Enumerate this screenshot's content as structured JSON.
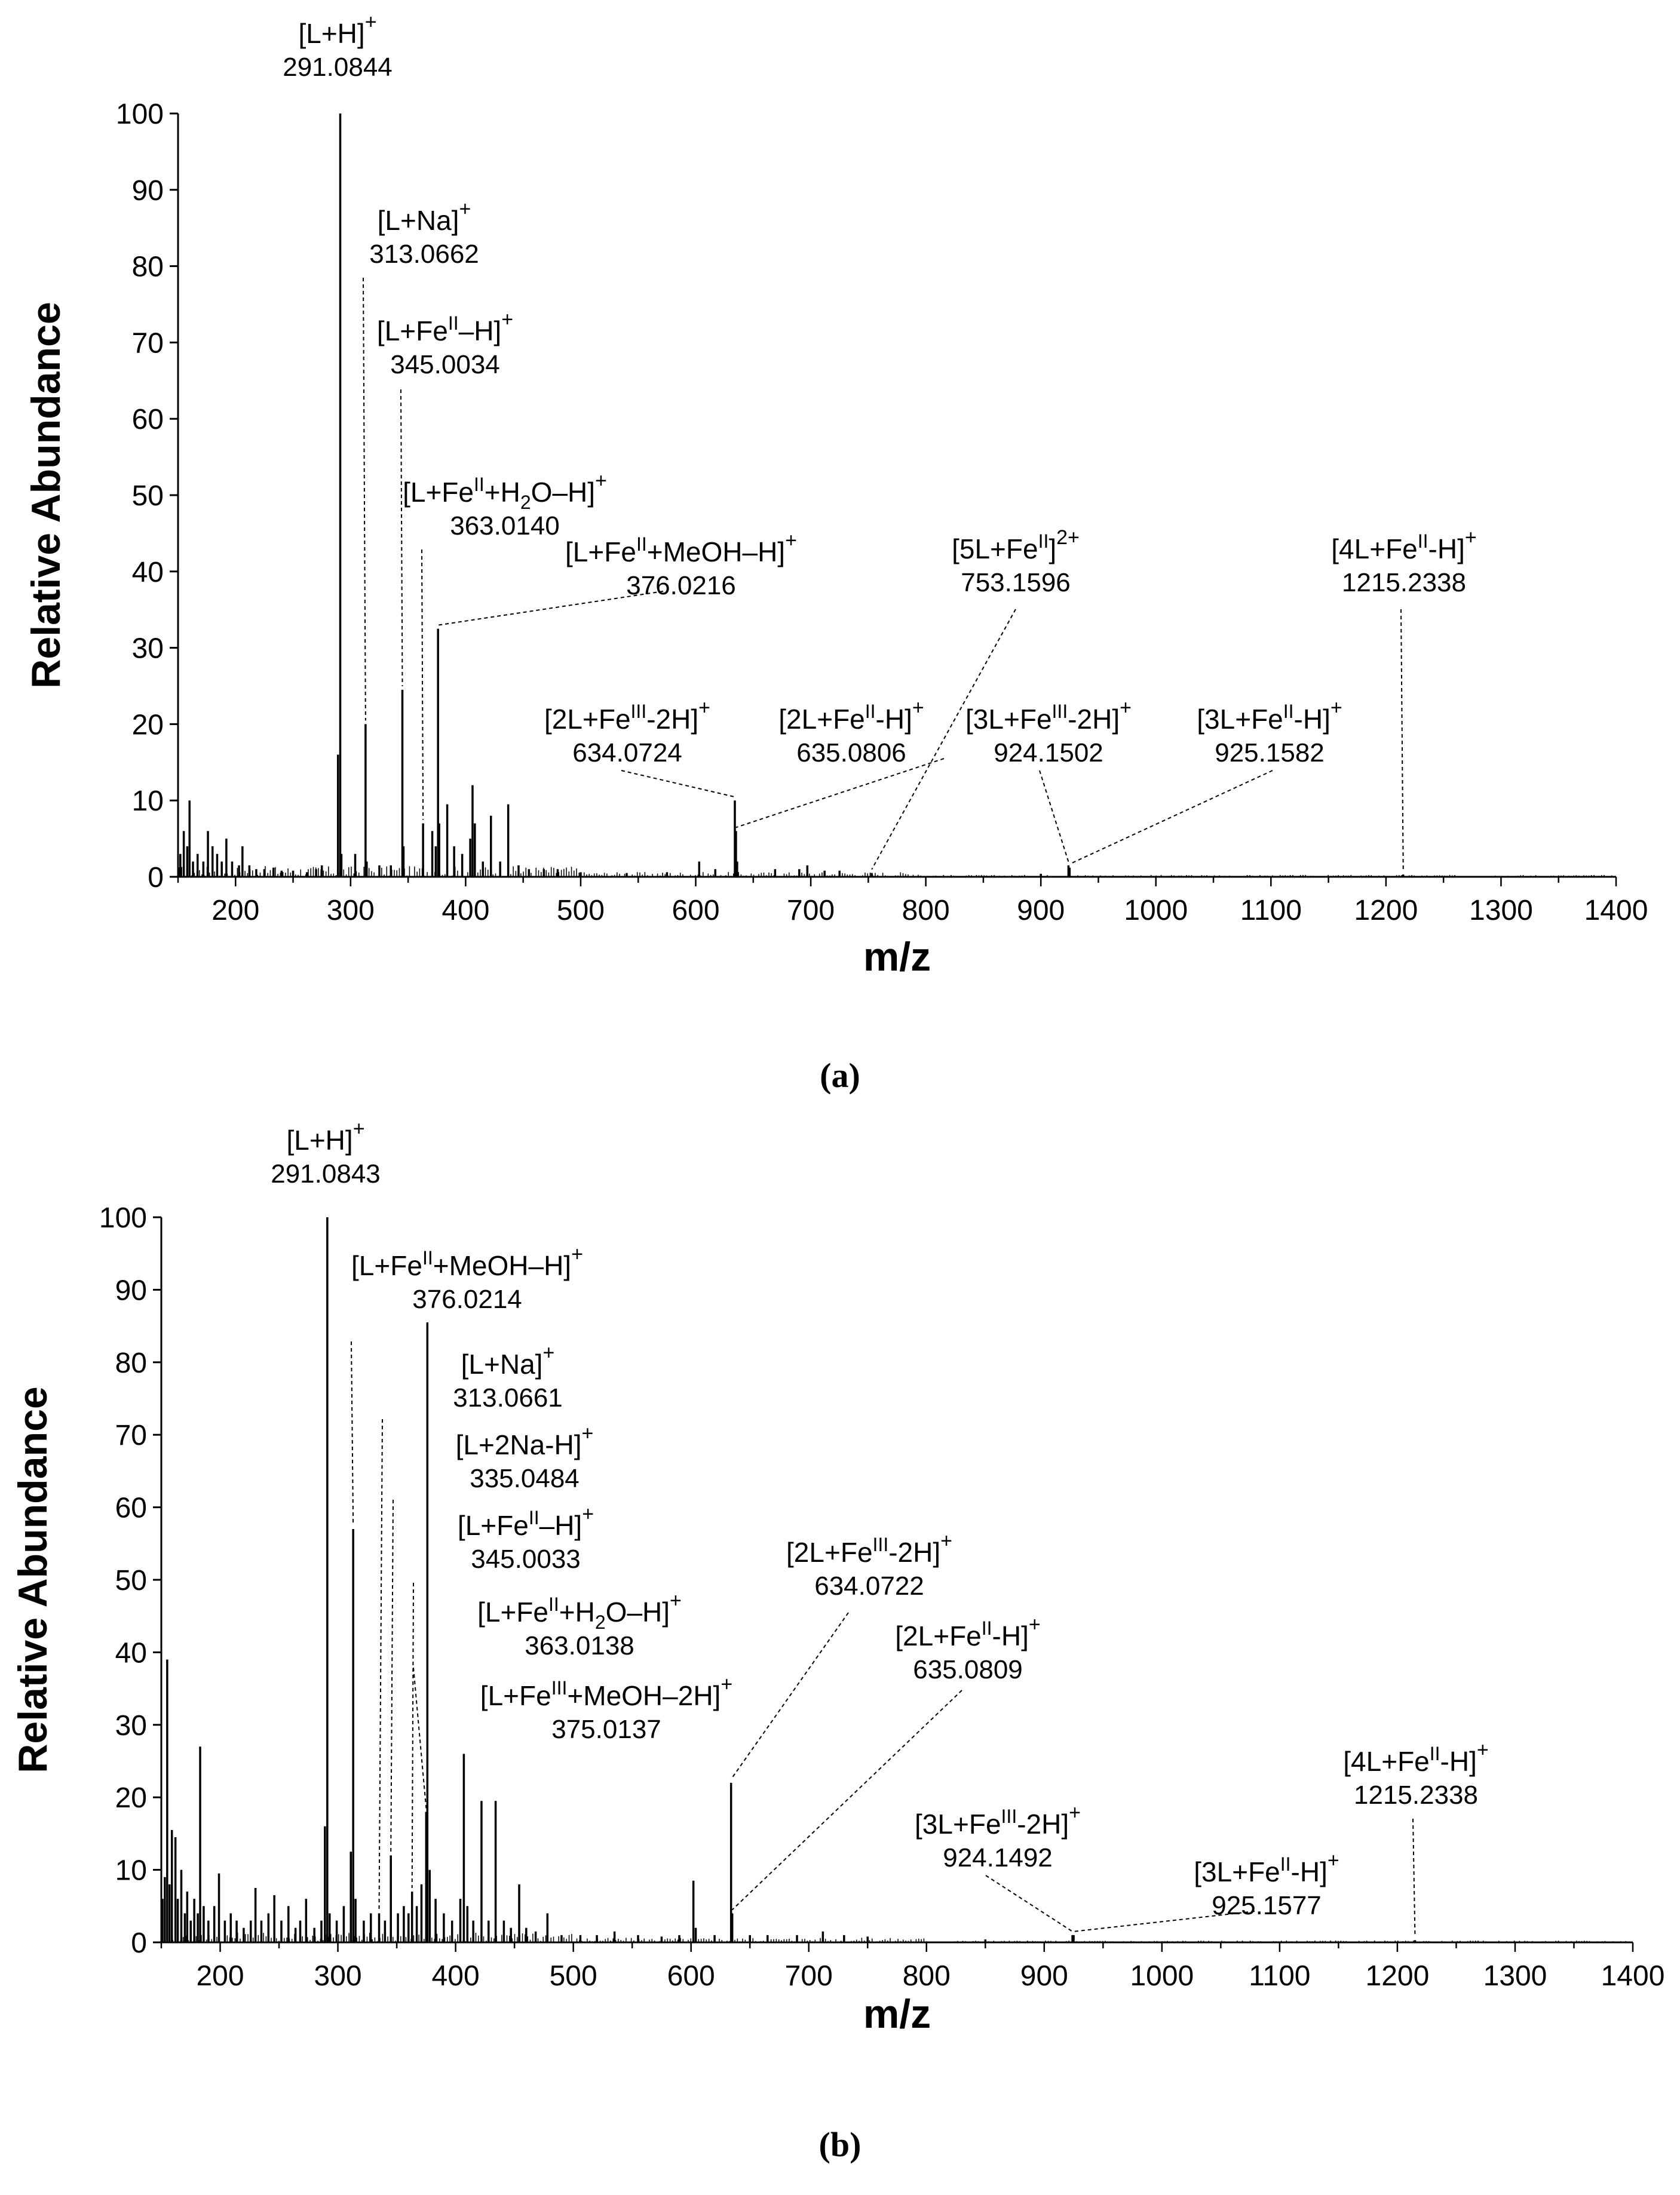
{
  "chart_data": [
    {
      "id": "a",
      "type": "bar",
      "subtype": "mass-spectrum",
      "caption": "(a)",
      "xlabel": "m/z",
      "ylabel": "Relative Abundance",
      "xlim": [
        150,
        1400
      ],
      "ylim": [
        0,
        100
      ],
      "xticks": [
        200,
        300,
        400,
        500,
        600,
        700,
        800,
        900,
        1000,
        1100,
        1200,
        1300,
        1400
      ],
      "yticks": [
        0,
        10,
        20,
        30,
        40,
        50,
        60,
        70,
        80,
        90,
        100
      ],
      "peaks": [
        {
          "mz": 152,
          "y": 3
        },
        {
          "mz": 155,
          "y": 6
        },
        {
          "mz": 158,
          "y": 4
        },
        {
          "mz": 160,
          "y": 10
        },
        {
          "mz": 163,
          "y": 2
        },
        {
          "mz": 167,
          "y": 3
        },
        {
          "mz": 172,
          "y": 2
        },
        {
          "mz": 176,
          "y": 6
        },
        {
          "mz": 180,
          "y": 4
        },
        {
          "mz": 184,
          "y": 3
        },
        {
          "mz": 188,
          "y": 2
        },
        {
          "mz": 192,
          "y": 5
        },
        {
          "mz": 197,
          "y": 2
        },
        {
          "mz": 203,
          "y": 1.5
        },
        {
          "mz": 206,
          "y": 4
        },
        {
          "mz": 212,
          "y": 1.5
        },
        {
          "mz": 218,
          "y": 1
        },
        {
          "mz": 225,
          "y": 1
        },
        {
          "mz": 233,
          "y": 1.2
        },
        {
          "mz": 240,
          "y": 0.8
        },
        {
          "mz": 250,
          "y": 0.8
        },
        {
          "mz": 262,
          "y": 0.6
        },
        {
          "mz": 270,
          "y": 1
        },
        {
          "mz": 275,
          "y": 1.5
        },
        {
          "mz": 289,
          "y": 16
        },
        {
          "mz": 291,
          "y": 100
        },
        {
          "mz": 292,
          "y": 3
        },
        {
          "mz": 304,
          "y": 3
        },
        {
          "mz": 313,
          "y": 20
        },
        {
          "mz": 314,
          "y": 2
        },
        {
          "mz": 325,
          "y": 1.5
        },
        {
          "mz": 335,
          "y": 1.5
        },
        {
          "mz": 345,
          "y": 24.5
        },
        {
          "mz": 346,
          "y": 4
        },
        {
          "mz": 363,
          "y": 7
        },
        {
          "mz": 371,
          "y": 6
        },
        {
          "mz": 374,
          "y": 4
        },
        {
          "mz": 376,
          "y": 32.5
        },
        {
          "mz": 377,
          "y": 7
        },
        {
          "mz": 384,
          "y": 9.5
        },
        {
          "mz": 390,
          "y": 4
        },
        {
          "mz": 397,
          "y": 3
        },
        {
          "mz": 404,
          "y": 5
        },
        {
          "mz": 406,
          "y": 12
        },
        {
          "mz": 408,
          "y": 7
        },
        {
          "mz": 415,
          "y": 2
        },
        {
          "mz": 422,
          "y": 8
        },
        {
          "mz": 430,
          "y": 2
        },
        {
          "mz": 437,
          "y": 9.5
        },
        {
          "mz": 446,
          "y": 1.5
        },
        {
          "mz": 455,
          "y": 1
        },
        {
          "mz": 468,
          "y": 1
        },
        {
          "mz": 480,
          "y": 1
        },
        {
          "mz": 500,
          "y": 0.6
        },
        {
          "mz": 540,
          "y": 0.5
        },
        {
          "mz": 575,
          "y": 0.6
        },
        {
          "mz": 603,
          "y": 2
        },
        {
          "mz": 617,
          "y": 1
        },
        {
          "mz": 634,
          "y": 10
        },
        {
          "mz": 635,
          "y": 6
        },
        {
          "mz": 636,
          "y": 2
        },
        {
          "mz": 669,
          "y": 1
        },
        {
          "mz": 690,
          "y": 1
        },
        {
          "mz": 697,
          "y": 1.5
        },
        {
          "mz": 712,
          "y": 0.8
        },
        {
          "mz": 725,
          "y": 0.8
        },
        {
          "mz": 753,
          "y": 0.5
        },
        {
          "mz": 900,
          "y": 0.4
        },
        {
          "mz": 924,
          "y": 1.5
        },
        {
          "mz": 925,
          "y": 1.2
        },
        {
          "mz": 1215,
          "y": 0.3
        }
      ],
      "annotations": [
        {
          "label": "[L+H]",
          "sup": "+",
          "mz_value": "291.0844",
          "peak_mz": 291,
          "peak_y": 100
        },
        {
          "label": "[L+Na]",
          "sup": "+",
          "mz_value": "313.0662",
          "peak_mz": 313,
          "peak_y": 20
        },
        {
          "label": "[L+Fe",
          "ox": "II",
          "label_tail": "–H]",
          "sup": "+",
          "mz_value": "345.0034",
          "peak_mz": 345,
          "peak_y": 24.5
        },
        {
          "label": "[L+Fe",
          "ox": "II",
          "label_tail": "+H",
          "sub": "2",
          "label_tail2": "O–H]",
          "sup": "+",
          "mz_value": "363.0140",
          "peak_mz": 363,
          "peak_y": 7
        },
        {
          "label": "[L+Fe",
          "ox": "II",
          "label_tail": "+MeOH–H]",
          "sup": "+",
          "mz_value": "376.0216",
          "peak_mz": 376,
          "peak_y": 32.5
        },
        {
          "label": "[2L+Fe",
          "ox": "III",
          "label_tail": "-2H]",
          "sup": "+",
          "mz_value": "634.0724",
          "peak_mz": 634,
          "peak_y": 10
        },
        {
          "label": "[2L+Fe",
          "ox": "II",
          "label_tail": "-H]",
          "sup": "+",
          "mz_value": "635.0806",
          "peak_mz": 635,
          "peak_y": 6
        },
        {
          "label": "[5L+Fe",
          "ox": "II",
          "sup": "2+",
          "mz_value": "753.1596",
          "peak_mz": 753,
          "peak_y": 0.5
        },
        {
          "label": "[3L+Fe",
          "ox": "III",
          "label_tail": "-2H]",
          "sup": "+",
          "mz_value": "924.1502",
          "peak_mz": 924,
          "peak_y": 1.5
        },
        {
          "label": "[3L+Fe",
          "ox": "II",
          "label_tail": "-H]",
          "sup": "+",
          "mz_value": "925.1582",
          "peak_mz": 925,
          "peak_y": 1.2
        },
        {
          "label": "[4L+Fe",
          "ox": "II",
          "label_tail": "-H]",
          "sup": "+",
          "mz_value": "1215.2338",
          "peak_mz": 1215,
          "peak_y": 0.3
        }
      ]
    },
    {
      "id": "b",
      "type": "bar",
      "subtype": "mass-spectrum",
      "caption": "(b)",
      "xlabel": "m/z",
      "ylabel": "Relative Abundance",
      "xlim": [
        150,
        1400
      ],
      "ylim": [
        0,
        100
      ],
      "xticks": [
        200,
        300,
        400,
        500,
        600,
        700,
        800,
        900,
        1000,
        1100,
        1200,
        1300,
        1400
      ],
      "yticks": [
        0,
        10,
        20,
        30,
        40,
        50,
        60,
        70,
        80,
        90,
        100
      ],
      "peaks": [
        {
          "mz": 151,
          "y": 6
        },
        {
          "mz": 153,
          "y": 9
        },
        {
          "mz": 155,
          "y": 39
        },
        {
          "mz": 157,
          "y": 8
        },
        {
          "mz": 159,
          "y": 15.5
        },
        {
          "mz": 162,
          "y": 14.5
        },
        {
          "mz": 164,
          "y": 6
        },
        {
          "mz": 167,
          "y": 10
        },
        {
          "mz": 170,
          "y": 4
        },
        {
          "mz": 172,
          "y": 7
        },
        {
          "mz": 175,
          "y": 3
        },
        {
          "mz": 178,
          "y": 6
        },
        {
          "mz": 181,
          "y": 4
        },
        {
          "mz": 183,
          "y": 27
        },
        {
          "mz": 186,
          "y": 5
        },
        {
          "mz": 190,
          "y": 3
        },
        {
          "mz": 195,
          "y": 5
        },
        {
          "mz": 199,
          "y": 9.5
        },
        {
          "mz": 204,
          "y": 3
        },
        {
          "mz": 209,
          "y": 4
        },
        {
          "mz": 214,
          "y": 3
        },
        {
          "mz": 220,
          "y": 2
        },
        {
          "mz": 226,
          "y": 3
        },
        {
          "mz": 230,
          "y": 7.5
        },
        {
          "mz": 235,
          "y": 3
        },
        {
          "mz": 241,
          "y": 4
        },
        {
          "mz": 246,
          "y": 6.5
        },
        {
          "mz": 252,
          "y": 3
        },
        {
          "mz": 258,
          "y": 5
        },
        {
          "mz": 264,
          "y": 2
        },
        {
          "mz": 268,
          "y": 3
        },
        {
          "mz": 273,
          "y": 6
        },
        {
          "mz": 280,
          "y": 2
        },
        {
          "mz": 286,
          "y": 3
        },
        {
          "mz": 289,
          "y": 16
        },
        {
          "mz": 291,
          "y": 100
        },
        {
          "mz": 293,
          "y": 4
        },
        {
          "mz": 299,
          "y": 3
        },
        {
          "mz": 305,
          "y": 5
        },
        {
          "mz": 311,
          "y": 12.5
        },
        {
          "mz": 313,
          "y": 57
        },
        {
          "mz": 315,
          "y": 6
        },
        {
          "mz": 322,
          "y": 3
        },
        {
          "mz": 328,
          "y": 4
        },
        {
          "mz": 335,
          "y": 4
        },
        {
          "mz": 340,
          "y": 3
        },
        {
          "mz": 345,
          "y": 12
        },
        {
          "mz": 351,
          "y": 4
        },
        {
          "mz": 356,
          "y": 5
        },
        {
          "mz": 360,
          "y": 4
        },
        {
          "mz": 363,
          "y": 7
        },
        {
          "mz": 367,
          "y": 5
        },
        {
          "mz": 371,
          "y": 8
        },
        {
          "mz": 375,
          "y": 18
        },
        {
          "mz": 376,
          "y": 85.5
        },
        {
          "mz": 378,
          "y": 10
        },
        {
          "mz": 383,
          "y": 6
        },
        {
          "mz": 390,
          "y": 4
        },
        {
          "mz": 397,
          "y": 3
        },
        {
          "mz": 404,
          "y": 6
        },
        {
          "mz": 407,
          "y": 26
        },
        {
          "mz": 410,
          "y": 5
        },
        {
          "mz": 415,
          "y": 3
        },
        {
          "mz": 422,
          "y": 19.5
        },
        {
          "mz": 428,
          "y": 3
        },
        {
          "mz": 434,
          "y": 19.5
        },
        {
          "mz": 441,
          "y": 3
        },
        {
          "mz": 447,
          "y": 2
        },
        {
          "mz": 454,
          "y": 8
        },
        {
          "mz": 460,
          "y": 2
        },
        {
          "mz": 468,
          "y": 1.5
        },
        {
          "mz": 478,
          "y": 4
        },
        {
          "mz": 490,
          "y": 1
        },
        {
          "mz": 506,
          "y": 1
        },
        {
          "mz": 520,
          "y": 1
        },
        {
          "mz": 535,
          "y": 1.5
        },
        {
          "mz": 555,
          "y": 1
        },
        {
          "mz": 575,
          "y": 0.8
        },
        {
          "mz": 590,
          "y": 1
        },
        {
          "mz": 602,
          "y": 8.5
        },
        {
          "mz": 604,
          "y": 2
        },
        {
          "mz": 620,
          "y": 1
        },
        {
          "mz": 634,
          "y": 22
        },
        {
          "mz": 635,
          "y": 4
        },
        {
          "mz": 650,
          "y": 1
        },
        {
          "mz": 665,
          "y": 1
        },
        {
          "mz": 690,
          "y": 1
        },
        {
          "mz": 712,
          "y": 1.5
        },
        {
          "mz": 730,
          "y": 1
        },
        {
          "mz": 750,
          "y": 0.8
        },
        {
          "mz": 850,
          "y": 0.4
        },
        {
          "mz": 924,
          "y": 1
        },
        {
          "mz": 925,
          "y": 1
        },
        {
          "mz": 1215,
          "y": 0.3
        }
      ],
      "annotations": [
        {
          "label": "[L+H]",
          "sup": "+",
          "mz_value": "291.0843",
          "peak_mz": 291,
          "peak_y": 100
        },
        {
          "label": "[L+Fe",
          "ox": "II",
          "label_tail": "+MeOH–H]",
          "sup": "+",
          "mz_value": "376.0214",
          "peak_mz": 376,
          "peak_y": 85.5
        },
        {
          "label": "[L+Na]",
          "sup": "+",
          "mz_value": "313.0661",
          "peak_mz": 313,
          "peak_y": 57
        },
        {
          "label": "[L+2Na-H]",
          "sup": "+",
          "mz_value": "335.0484",
          "peak_mz": 335,
          "peak_y": 4
        },
        {
          "label": "[L+Fe",
          "ox": "II",
          "label_tail": "–H]",
          "sup": "+",
          "mz_value": "345.0033",
          "peak_mz": 345,
          "peak_y": 12
        },
        {
          "label": "[L+Fe",
          "ox": "II",
          "label_tail": "+H",
          "sub": "2",
          "label_tail2": "O–H]",
          "sup": "+",
          "mz_value": "363.0138",
          "peak_mz": 363,
          "peak_y": 7
        },
        {
          "label": "[L+Fe",
          "ox": "III",
          "label_tail": "+MeOH–2H]",
          "sup": "+",
          "mz_value": "375.0137",
          "peak_mz": 375,
          "peak_y": 18
        },
        {
          "label": "[2L+Fe",
          "ox": "III",
          "label_tail": "-2H]",
          "sup": "+",
          "mz_value": "634.0722",
          "peak_mz": 634,
          "peak_y": 22
        },
        {
          "label": "[2L+Fe",
          "ox": "II",
          "label_tail": "-H]",
          "sup": "+",
          "mz_value": "635.0809",
          "peak_mz": 635,
          "peak_y": 4
        },
        {
          "label": "[3L+Fe",
          "ox": "III",
          "label_tail": "-2H]",
          "sup": "+",
          "mz_value": "924.1492",
          "peak_mz": 924,
          "peak_y": 1
        },
        {
          "label": "[3L+Fe",
          "ox": "II",
          "label_tail": "-H]",
          "sup": "+",
          "mz_value": "925.1577",
          "peak_mz": 925,
          "peak_y": 1
        },
        {
          "label": "[4L+Fe",
          "ox": "II",
          "label_tail": "-H]",
          "sup": "+",
          "mz_value": "1215.2338",
          "peak_mz": 1215,
          "peak_y": 0.3
        }
      ]
    }
  ]
}
